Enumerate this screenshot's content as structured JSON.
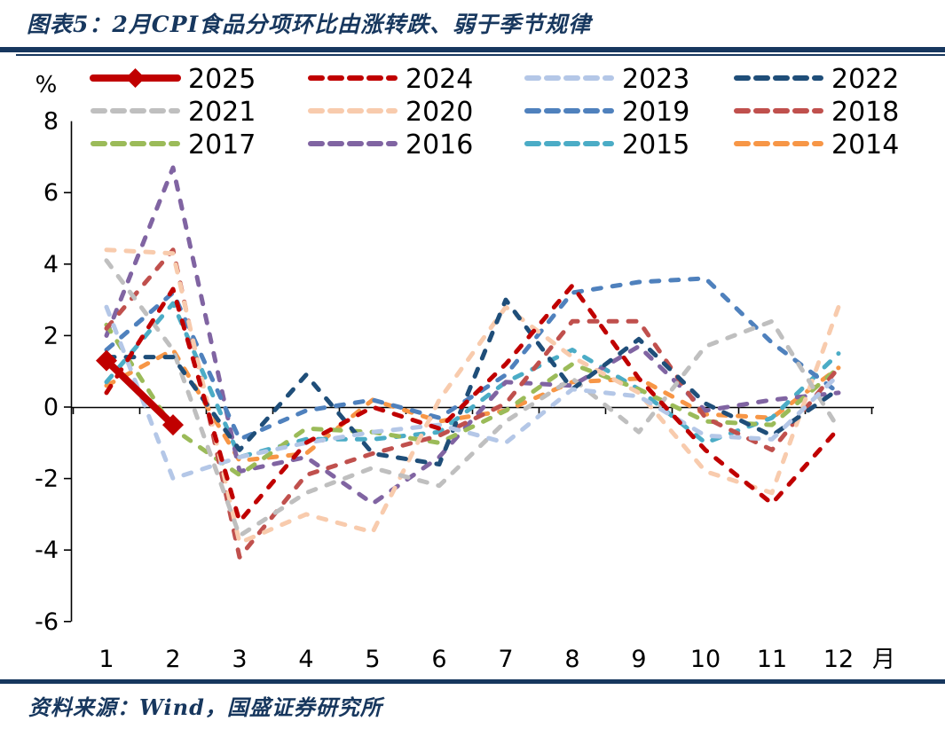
{
  "figure": {
    "title": "图表5：2月CPI食品分项环比由涨转跌、弱于季节规律",
    "source": "资料来源：Wind，国盛证券研究所",
    "accent_color": "#17375E",
    "text_color": "#000000",
    "background_color": "#FFFFFF"
  },
  "chart_data": {
    "type": "line",
    "title": "图表5：2月CPI食品分项环比由涨转跌、弱于季节规律",
    "y_unit_label": "%",
    "x_unit_label": "月",
    "xlabel": "月份 (1-12)",
    "ylabel": "CPI食品分项环比 (%)",
    "categories": [
      1,
      2,
      3,
      4,
      5,
      6,
      7,
      8,
      9,
      10,
      11,
      12
    ],
    "ylim": [
      -6,
      8
    ],
    "y_ticks": [
      8,
      6,
      4,
      2,
      0,
      -2,
      -4,
      -6
    ],
    "grid": false,
    "legend_position": "top",
    "axis_color": "#000000",
    "series": [
      {
        "name": "2025",
        "color": "#C00000",
        "style": "solid",
        "marker": "diamond",
        "values": [
          1.3,
          -0.5
        ]
      },
      {
        "name": "2024",
        "color": "#C00000",
        "style": "dashed",
        "marker": "none",
        "values": [
          0.4,
          3.3,
          -3.2,
          -1.0,
          0.0,
          -0.6,
          1.2,
          3.4,
          0.8,
          -1.2,
          -2.7,
          -0.6
        ]
      },
      {
        "name": "2023",
        "color": "#B4C7E7",
        "style": "dashed",
        "marker": "none",
        "values": [
          2.8,
          -2.0,
          -1.4,
          -1.0,
          -0.7,
          -0.5,
          -1.0,
          0.5,
          0.3,
          -0.8,
          -0.9,
          0.9
        ]
      },
      {
        "name": "2022",
        "color": "#1F4E79",
        "style": "dashed",
        "marker": "none",
        "values": [
          1.4,
          1.4,
          -1.2,
          0.9,
          -1.3,
          -1.6,
          3.0,
          0.5,
          1.9,
          0.1,
          -0.8,
          0.5
        ]
      },
      {
        "name": "2021",
        "color": "#BFBFBF",
        "style": "dashed",
        "marker": "none",
        "values": [
          4.1,
          1.6,
          -3.6,
          -2.4,
          -1.7,
          -2.2,
          -0.4,
          0.8,
          -0.7,
          1.7,
          2.4,
          -0.6
        ]
      },
      {
        "name": "2020",
        "color": "#F8CBAD",
        "style": "dashed",
        "marker": "none",
        "values": [
          4.4,
          4.3,
          -3.8,
          -3.0,
          -3.5,
          0.2,
          2.8,
          1.4,
          0.4,
          -1.8,
          -2.4,
          2.8
        ]
      },
      {
        "name": "2019",
        "color": "#4F81BD",
        "style": "dashed",
        "marker": "none",
        "values": [
          1.6,
          3.2,
          -0.9,
          -0.1,
          0.2,
          -0.3,
          0.9,
          3.2,
          3.5,
          3.6,
          1.8,
          0.4
        ]
      },
      {
        "name": "2018",
        "color": "#C0504D",
        "style": "dashed",
        "marker": "none",
        "values": [
          2.2,
          4.4,
          -4.2,
          -1.9,
          -1.3,
          -0.8,
          0.1,
          2.4,
          2.4,
          -0.3,
          -1.2,
          1.1
        ]
      },
      {
        "name": "2017",
        "color": "#9BBB59",
        "style": "dashed",
        "marker": "none",
        "values": [
          2.3,
          -0.6,
          -1.9,
          -0.6,
          -0.7,
          -1.0,
          -0.1,
          1.2,
          0.5,
          -0.4,
          -0.5,
          1.1
        ]
      },
      {
        "name": "2016",
        "color": "#8064A2",
        "style": "dashed",
        "marker": "none",
        "values": [
          2.0,
          6.7,
          -1.8,
          -1.4,
          -2.7,
          -1.4,
          0.7,
          0.6,
          1.7,
          -0.1,
          0.2,
          0.4
        ]
      },
      {
        "name": "2015",
        "color": "#4BACC6",
        "style": "dashed",
        "marker": "none",
        "values": [
          0.7,
          2.9,
          -1.4,
          -0.9,
          -0.9,
          -0.7,
          0.7,
          1.6,
          0.5,
          -1.0,
          -0.3,
          1.5
        ]
      },
      {
        "name": "2014",
        "color": "#F79646",
        "style": "dashed",
        "marker": "none",
        "values": [
          0.6,
          1.6,
          -1.5,
          -1.3,
          0.2,
          -0.4,
          -0.1,
          0.7,
          0.8,
          -0.2,
          -0.3,
          1.1
        ]
      }
    ]
  }
}
